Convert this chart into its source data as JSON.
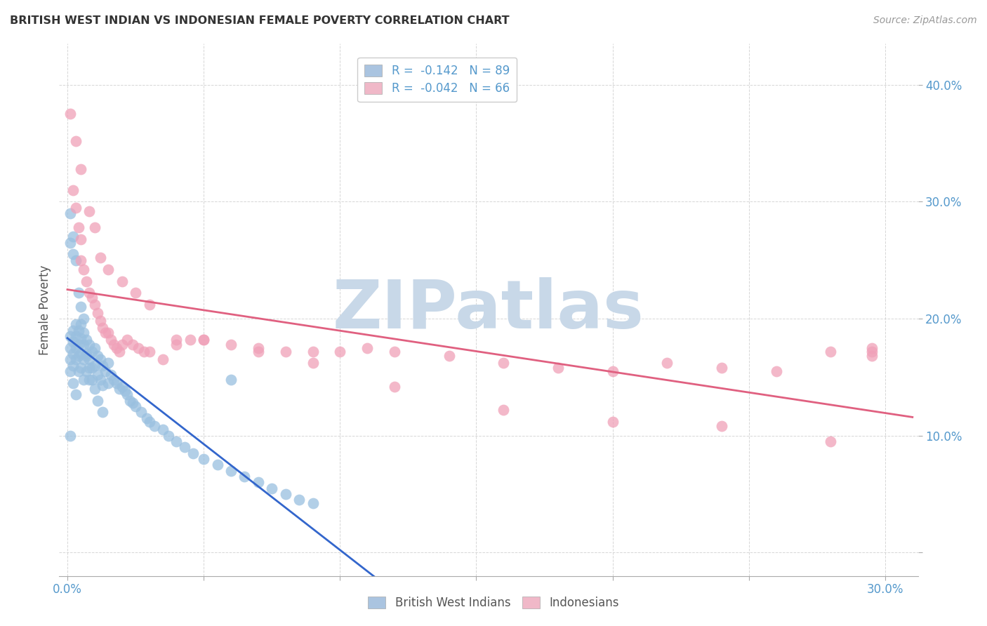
{
  "title": "BRITISH WEST INDIAN VS INDONESIAN FEMALE POVERTY CORRELATION CHART",
  "source": "Source: ZipAtlas.com",
  "ylabel": "Female Poverty",
  "xlim": [
    -0.003,
    0.312
  ],
  "ylim": [
    -0.02,
    0.435
  ],
  "x_ticks": [
    0.0,
    0.05,
    0.1,
    0.15,
    0.2,
    0.25,
    0.3
  ],
  "y_ticks": [
    0.0,
    0.1,
    0.2,
    0.3,
    0.4
  ],
  "legend_entry_1": "R =  -0.142   N = 89",
  "legend_entry_2": "R =  -0.042   N = 66",
  "legend_color_1": "#aac4e0",
  "legend_color_2": "#f0b8c8",
  "bwi_scatter_color": "#99bfdf",
  "ind_scatter_color": "#f0a0b8",
  "bwi_solid_color": "#3366cc",
  "bwi_dash_color": "#99bfdf",
  "ind_line_color": "#e06080",
  "watermark": "ZIPatlas",
  "watermark_color": "#c8d8e8",
  "axis_tick_color": "#5599cc",
  "background_color": "#ffffff",
  "grid_color": "#cccccc",
  "bottom_legend_1": "British West Indians",
  "bottom_legend_2": "Indonesians",
  "bwi_x": [
    0.001,
    0.001,
    0.001,
    0.001,
    0.001,
    0.002,
    0.002,
    0.002,
    0.002,
    0.002,
    0.003,
    0.003,
    0.003,
    0.003,
    0.003,
    0.004,
    0.004,
    0.004,
    0.004,
    0.005,
    0.005,
    0.005,
    0.005,
    0.006,
    0.006,
    0.006,
    0.006,
    0.007,
    0.007,
    0.007,
    0.008,
    0.008,
    0.008,
    0.009,
    0.009,
    0.01,
    0.01,
    0.011,
    0.011,
    0.012,
    0.012,
    0.013,
    0.013,
    0.014,
    0.015,
    0.015,
    0.016,
    0.017,
    0.018,
    0.019,
    0.02,
    0.021,
    0.022,
    0.023,
    0.024,
    0.025,
    0.027,
    0.029,
    0.03,
    0.032,
    0.035,
    0.037,
    0.04,
    0.043,
    0.046,
    0.05,
    0.055,
    0.06,
    0.065,
    0.07,
    0.075,
    0.08,
    0.085,
    0.09,
    0.001,
    0.001,
    0.002,
    0.002,
    0.003,
    0.004,
    0.005,
    0.006,
    0.007,
    0.008,
    0.009,
    0.01,
    0.011,
    0.013,
    0.06
  ],
  "bwi_y": [
    0.185,
    0.175,
    0.165,
    0.155,
    0.1,
    0.19,
    0.18,
    0.17,
    0.16,
    0.145,
    0.195,
    0.185,
    0.175,
    0.165,
    0.135,
    0.19,
    0.178,
    0.168,
    0.155,
    0.195,
    0.183,
    0.17,
    0.158,
    0.188,
    0.178,
    0.165,
    0.148,
    0.182,
    0.17,
    0.155,
    0.178,
    0.165,
    0.148,
    0.172,
    0.158,
    0.175,
    0.16,
    0.168,
    0.152,
    0.165,
    0.148,
    0.16,
    0.143,
    0.155,
    0.162,
    0.145,
    0.152,
    0.148,
    0.145,
    0.14,
    0.142,
    0.138,
    0.135,
    0.13,
    0.128,
    0.125,
    0.12,
    0.115,
    0.112,
    0.108,
    0.105,
    0.1,
    0.095,
    0.09,
    0.085,
    0.08,
    0.075,
    0.07,
    0.065,
    0.06,
    0.055,
    0.05,
    0.045,
    0.042,
    0.29,
    0.265,
    0.27,
    0.255,
    0.25,
    0.222,
    0.21,
    0.2,
    0.168,
    0.158,
    0.148,
    0.14,
    0.13,
    0.12,
    0.148
  ],
  "ind_x": [
    0.001,
    0.002,
    0.003,
    0.004,
    0.005,
    0.005,
    0.006,
    0.007,
    0.008,
    0.009,
    0.01,
    0.011,
    0.012,
    0.013,
    0.014,
    0.015,
    0.016,
    0.017,
    0.018,
    0.019,
    0.02,
    0.022,
    0.024,
    0.026,
    0.028,
    0.03,
    0.035,
    0.04,
    0.045,
    0.05,
    0.06,
    0.07,
    0.08,
    0.09,
    0.1,
    0.11,
    0.12,
    0.14,
    0.16,
    0.18,
    0.2,
    0.22,
    0.24,
    0.26,
    0.28,
    0.295,
    0.003,
    0.005,
    0.008,
    0.01,
    0.012,
    0.015,
    0.02,
    0.025,
    0.03,
    0.04,
    0.05,
    0.07,
    0.09,
    0.12,
    0.16,
    0.2,
    0.24,
    0.28,
    0.295,
    0.295
  ],
  "ind_y": [
    0.375,
    0.31,
    0.295,
    0.278,
    0.268,
    0.25,
    0.242,
    0.232,
    0.222,
    0.218,
    0.212,
    0.205,
    0.198,
    0.192,
    0.188,
    0.188,
    0.182,
    0.178,
    0.175,
    0.172,
    0.178,
    0.182,
    0.178,
    0.175,
    0.172,
    0.172,
    0.165,
    0.178,
    0.182,
    0.182,
    0.178,
    0.175,
    0.172,
    0.172,
    0.172,
    0.175,
    0.172,
    0.168,
    0.162,
    0.158,
    0.155,
    0.162,
    0.158,
    0.155,
    0.172,
    0.168,
    0.352,
    0.328,
    0.292,
    0.278,
    0.252,
    0.242,
    0.232,
    0.222,
    0.212,
    0.182,
    0.182,
    0.172,
    0.162,
    0.142,
    0.122,
    0.112,
    0.108,
    0.095,
    0.172,
    0.175
  ]
}
